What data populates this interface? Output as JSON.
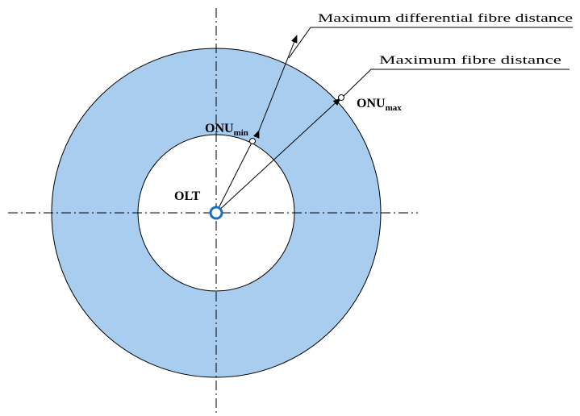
{
  "labels": {
    "olt": "OLT",
    "onu_min_main": "ONU",
    "onu_min_sub": "min",
    "onu_max_main": "ONU",
    "onu_max_sub": "max",
    "max_differential_fibre_distance": "Maximum differential fibre distance",
    "max_fibre_distance": "Maximum fibre distance"
  },
  "colors": {
    "ring_fill": "#a8cdee",
    "olt_marker": "#1a6fc2",
    "stroke": "#000000",
    "background": "#ffffff"
  }
}
